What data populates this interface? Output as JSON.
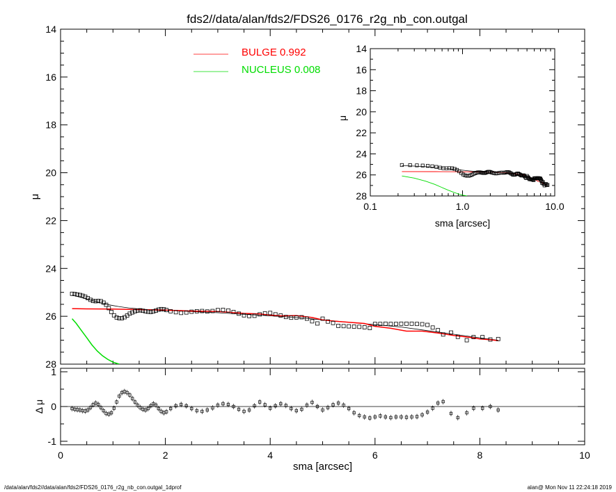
{
  "title": "fds2//data/alan/fds2/FDS26_0176_r2g_nb_con.outgal",
  "footer": {
    "left": "/data/alan/fds2//data/alan/fds2/FDS26_0176_r2g_nb_con.outgal_1dprof",
    "right": "alan@  Mon Nov 11 22:24:18 2019"
  },
  "colors": {
    "bulge": "#ff0000",
    "nucleus": "#00dd00",
    "data": "#000000",
    "model": "#000000"
  },
  "legend": [
    {
      "label": "BULGE  0.992",
      "color": "#ff0000"
    },
    {
      "label": "NUCLEUS  0.008",
      "color": "#00dd00"
    }
  ],
  "chart_data": [
    {
      "name": "main-profile",
      "type": "scatter",
      "xlabel": "",
      "ylabel": "μ",
      "xlim": [
        0,
        10
      ],
      "ylim": [
        28,
        14
      ],
      "yticks": [
        14,
        16,
        18,
        20,
        22,
        24,
        26,
        28
      ],
      "xticks": [
        0,
        2,
        4,
        6,
        8,
        10
      ],
      "observed": {
        "x": [
          0.22,
          0.27,
          0.32,
          0.37,
          0.42,
          0.47,
          0.52,
          0.57,
          0.62,
          0.67,
          0.72,
          0.77,
          0.82,
          0.87,
          0.92,
          0.97,
          1.02,
          1.07,
          1.12,
          1.17,
          1.22,
          1.27,
          1.32,
          1.37,
          1.42,
          1.47,
          1.52,
          1.57,
          1.62,
          1.67,
          1.72,
          1.77,
          1.82,
          1.87,
          1.92,
          1.97,
          2.02,
          2.1,
          2.2,
          2.3,
          2.4,
          2.5,
          2.6,
          2.7,
          2.8,
          2.9,
          3.0,
          3.1,
          3.2,
          3.3,
          3.4,
          3.5,
          3.6,
          3.7,
          3.8,
          3.9,
          4.0,
          4.1,
          4.2,
          4.3,
          4.4,
          4.5,
          4.6,
          4.7,
          4.8,
          4.9,
          5.0,
          5.1,
          5.2,
          5.3,
          5.4,
          5.5,
          5.6,
          5.7,
          5.8,
          5.9,
          6.0,
          6.1,
          6.2,
          6.3,
          6.4,
          6.5,
          6.6,
          6.7,
          6.8,
          6.9,
          7.0,
          7.1,
          7.2,
          7.3,
          7.45,
          7.58,
          7.75,
          7.88,
          8.05,
          8.2,
          8.35
        ],
        "mu": [
          25.06,
          25.07,
          25.09,
          25.11,
          25.14,
          25.18,
          25.24,
          25.31,
          25.36,
          25.37,
          25.36,
          25.37,
          25.43,
          25.52,
          25.66,
          25.82,
          25.96,
          26.05,
          26.08,
          26.08,
          26.04,
          25.97,
          25.89,
          25.84,
          25.79,
          25.76,
          25.75,
          25.77,
          25.79,
          25.81,
          25.82,
          25.8,
          25.76,
          25.72,
          25.7,
          25.71,
          25.74,
          25.79,
          25.83,
          25.86,
          25.84,
          25.81,
          25.79,
          25.78,
          25.8,
          25.78,
          25.74,
          25.73,
          25.76,
          25.82,
          25.89,
          25.96,
          25.99,
          25.98,
          25.92,
          25.88,
          25.86,
          25.92,
          25.97,
          26.03,
          26.06,
          26.05,
          26.04,
          26.1,
          26.21,
          26.3,
          26.1,
          26.22,
          26.28,
          26.4,
          26.41,
          26.42,
          26.43,
          26.44,
          26.46,
          26.49,
          26.32,
          26.32,
          26.31,
          26.32,
          26.32,
          26.31,
          26.31,
          26.31,
          26.32,
          26.33,
          26.36,
          26.47,
          26.58,
          26.76,
          26.68,
          26.86,
          27.0,
          26.87,
          26.87,
          26.97,
          26.95
        ]
      },
      "model_total": {
        "x": [
          0.22,
          0.3,
          0.4,
          0.5,
          0.6,
          0.7,
          0.8,
          0.9,
          1.0,
          1.1,
          1.2,
          1.3,
          1.4,
          1.5,
          1.6,
          1.7,
          1.8,
          1.9,
          2.0,
          2.5,
          3.0,
          3.5,
          4.0,
          4.5,
          5.0,
          5.5,
          6.0,
          6.5,
          7.0,
          7.5,
          8.0,
          8.35
        ],
        "mu": [
          25.12,
          25.16,
          25.22,
          25.28,
          25.34,
          25.4,
          25.46,
          25.51,
          25.55,
          25.59,
          25.62,
          25.65,
          25.67,
          25.69,
          25.71,
          25.72,
          25.73,
          25.74,
          25.75,
          25.8,
          25.85,
          25.92,
          25.98,
          26.05,
          26.15,
          26.25,
          26.35,
          26.45,
          26.6,
          26.75,
          26.9,
          27.0
        ]
      },
      "bulge": {
        "x": [
          0.22,
          0.5,
          1.0,
          1.5,
          2.0,
          2.5,
          3.0,
          3.2,
          3.5,
          3.8,
          4.0,
          4.2,
          4.5,
          4.8,
          5.0,
          5.2,
          5.5,
          5.8,
          6.0,
          6.3,
          6.6,
          6.9,
          7.2,
          7.5,
          7.8,
          8.0,
          8.2,
          8.35
        ],
        "mu": [
          25.68,
          25.69,
          25.7,
          25.72,
          25.74,
          25.78,
          25.8,
          25.83,
          25.88,
          25.9,
          25.95,
          25.98,
          25.97,
          26.05,
          26.15,
          26.2,
          26.25,
          26.3,
          26.42,
          26.5,
          26.62,
          26.62,
          26.7,
          26.8,
          26.88,
          26.95,
          26.98,
          27.02
        ]
      },
      "nucleus": {
        "x": [
          0.22,
          0.3,
          0.4,
          0.5,
          0.6,
          0.7,
          0.8,
          0.9,
          1.0,
          1.12
        ],
        "mu": [
          26.1,
          26.3,
          26.6,
          26.9,
          27.2,
          27.45,
          27.65,
          27.8,
          27.92,
          28.0
        ]
      }
    },
    {
      "name": "residuals",
      "type": "scatter",
      "xlabel": "sma [arcsec]",
      "ylabel": "Δ μ",
      "xlim": [
        0,
        10
      ],
      "ylim": [
        -1.1,
        1.1
      ],
      "yticks": [
        -1,
        0,
        1
      ],
      "xticks": [
        0,
        2,
        4,
        6,
        8,
        10
      ],
      "xtick_labels": [
        "0",
        "2",
        "4",
        "6",
        "8",
        "10"
      ],
      "x": [
        0.22,
        0.27,
        0.32,
        0.37,
        0.42,
        0.47,
        0.52,
        0.57,
        0.62,
        0.67,
        0.72,
        0.77,
        0.82,
        0.87,
        0.92,
        0.97,
        1.02,
        1.07,
        1.12,
        1.17,
        1.22,
        1.27,
        1.32,
        1.37,
        1.42,
        1.47,
        1.52,
        1.57,
        1.62,
        1.67,
        1.72,
        1.77,
        1.82,
        1.87,
        1.92,
        1.97,
        2.02,
        2.1,
        2.2,
        2.3,
        2.4,
        2.5,
        2.6,
        2.7,
        2.8,
        2.9,
        3.0,
        3.1,
        3.2,
        3.3,
        3.4,
        3.5,
        3.6,
        3.7,
        3.8,
        3.9,
        4.0,
        4.1,
        4.2,
        4.3,
        4.4,
        4.5,
        4.6,
        4.7,
        4.8,
        4.9,
        5.0,
        5.1,
        5.2,
        5.3,
        5.4,
        5.5,
        5.6,
        5.7,
        5.8,
        5.9,
        6.0,
        6.1,
        6.2,
        6.3,
        6.4,
        6.5,
        6.6,
        6.7,
        6.8,
        6.9,
        7.0,
        7.1,
        7.2,
        7.3,
        7.45,
        7.58,
        7.75,
        7.88,
        8.05,
        8.2,
        8.35
      ],
      "dmu": [
        -0.06,
        -0.08,
        -0.09,
        -0.1,
        -0.12,
        -0.13,
        -0.1,
        -0.03,
        0.05,
        0.1,
        0.06,
        -0.03,
        -0.12,
        -0.2,
        -0.22,
        -0.18,
        -0.05,
        0.13,
        0.3,
        0.4,
        0.43,
        0.4,
        0.33,
        0.23,
        0.13,
        0.04,
        -0.03,
        -0.08,
        -0.1,
        -0.06,
        0.02,
        0.08,
        0.04,
        -0.06,
        -0.14,
        -0.18,
        -0.15,
        -0.06,
        0.02,
        0.06,
        0.02,
        -0.06,
        -0.12,
        -0.14,
        -0.1,
        -0.04,
        0.04,
        0.08,
        0.06,
        0.0,
        -0.08,
        -0.14,
        -0.1,
        0.02,
        0.13,
        0.05,
        -0.05,
        0.02,
        0.08,
        0.03,
        -0.06,
        -0.12,
        -0.08,
        0.04,
        0.12,
        0.0,
        -0.1,
        -0.03,
        0.05,
        0.1,
        0.04,
        -0.06,
        -0.18,
        -0.26,
        -0.3,
        -0.33,
        -0.3,
        -0.27,
        -0.3,
        -0.32,
        -0.3,
        -0.3,
        -0.31,
        -0.3,
        -0.29,
        -0.24,
        -0.16,
        -0.05,
        0.1,
        0.14,
        -0.2,
        -0.32,
        -0.18,
        -0.05,
        -0.05,
        0.0,
        -0.1
      ]
    },
    {
      "name": "inset-profile",
      "type": "scatter",
      "xscale": "log",
      "xlabel": "sma [arcsec]",
      "ylabel": "μ",
      "xlim": [
        0.1,
        10
      ],
      "ylim": [
        28,
        14
      ],
      "yticks": [
        14,
        16,
        18,
        20,
        22,
        24,
        26,
        28
      ],
      "xticks": [
        0.1,
        1.0,
        10.0
      ],
      "xtick_labels": [
        "0.1",
        "1.0",
        "10.0"
      ]
    }
  ]
}
